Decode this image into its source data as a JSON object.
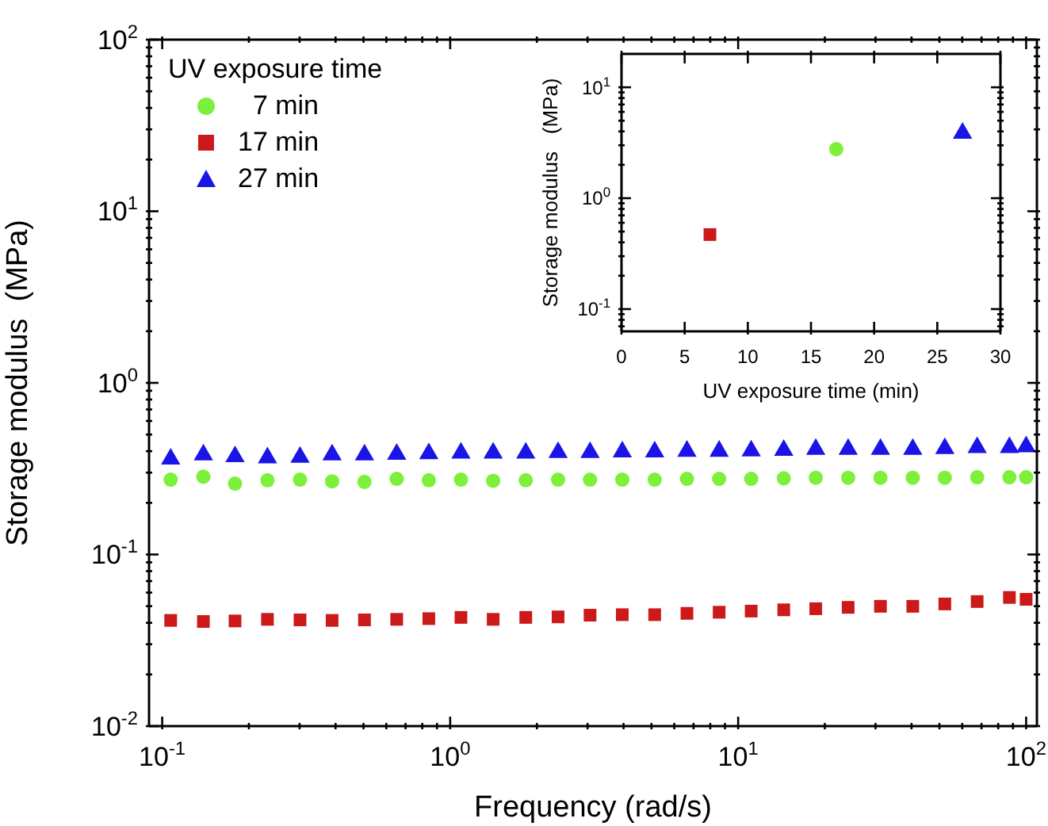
{
  "chart_data": [
    {
      "type": "scatter",
      "xlabel": "Frequency (rad/s)",
      "ylabel": "Storage modulus  (MPa)",
      "legend_title": "UV exposure time",
      "legend": "top left",
      "log": "xy",
      "xlim": [
        0.09,
        109
      ],
      "ylim": [
        0.01,
        100
      ],
      "xticks": [
        {
          "value": 0.1,
          "label": "10$^{-1}$"
        },
        {
          "value": 0.2,
          "label": null
        },
        {
          "value": 0.3,
          "label": null
        },
        {
          "value": 0.4,
          "label": null
        },
        {
          "value": 0.5,
          "label": null
        },
        {
          "value": 0.6,
          "label": null
        },
        {
          "value": 0.7,
          "label": null
        },
        {
          "value": 0.8,
          "label": null
        },
        {
          "value": 0.9,
          "label": null
        },
        {
          "value": 1,
          "label": "10$^{0}$"
        },
        {
          "value": 2,
          "label": null
        },
        {
          "value": 3,
          "label": null
        },
        {
          "value": 4,
          "label": null
        },
        {
          "value": 5,
          "label": null
        },
        {
          "value": 6,
          "label": null
        },
        {
          "value": 7,
          "label": null
        },
        {
          "value": 8,
          "label": null
        },
        {
          "value": 9,
          "label": null
        },
        {
          "value": 10,
          "label": "10$^{1}$"
        },
        {
          "value": 20,
          "label": null
        },
        {
          "value": 30,
          "label": null
        },
        {
          "value": 40,
          "label": null
        },
        {
          "value": 50,
          "label": null
        },
        {
          "value": 60,
          "label": null
        },
        {
          "value": 70,
          "label": null
        },
        {
          "value": 80,
          "label": null
        },
        {
          "value": 90,
          "label": null
        },
        {
          "value": 100,
          "label": "10$^{2}$"
        }
      ],
      "yticks": [
        {
          "value": 0.01,
          "label": "10$^{-2}$"
        },
        {
          "value": 0.02,
          "label": null
        },
        {
          "value": 0.03,
          "label": null
        },
        {
          "value": 0.04,
          "label": null
        },
        {
          "value": 0.05,
          "label": null
        },
        {
          "value": 0.06,
          "label": null
        },
        {
          "value": 0.07,
          "label": null
        },
        {
          "value": 0.08,
          "label": null
        },
        {
          "value": 0.09,
          "label": null
        },
        {
          "value": 0.1,
          "label": "10$^{-1}$"
        },
        {
          "value": 0.2,
          "label": null
        },
        {
          "value": 0.3,
          "label": null
        },
        {
          "value": 0.4,
          "label": null
        },
        {
          "value": 0.5,
          "label": null
        },
        {
          "value": 0.6,
          "label": null
        },
        {
          "value": 0.7,
          "label": null
        },
        {
          "value": 0.8,
          "label": null
        },
        {
          "value": 0.9,
          "label": null
        },
        {
          "value": 1,
          "label": "10$^{0}$"
        },
        {
          "value": 2,
          "label": null
        },
        {
          "value": 3,
          "label": null
        },
        {
          "value": 4,
          "label": null
        },
        {
          "value": 5,
          "label": null
        },
        {
          "value": 6,
          "label": null
        },
        {
          "value": 7,
          "label": null
        },
        {
          "value": 8,
          "label": null
        },
        {
          "value": 9,
          "label": null
        },
        {
          "value": 10,
          "label": "10$^{1}$"
        },
        {
          "value": 20,
          "label": null
        },
        {
          "value": 30,
          "label": null
        },
        {
          "value": 40,
          "label": null
        },
        {
          "value": 50,
          "label": null
        },
        {
          "value": 60,
          "label": null
        },
        {
          "value": 70,
          "label": null
        },
        {
          "value": 80,
          "label": null
        },
        {
          "value": 90,
          "label": null
        },
        {
          "value": 100,
          "label": "10$^{2}$"
        }
      ],
      "x": [
        0.107,
        0.139,
        0.179,
        0.232,
        0.301,
        0.389,
        0.504,
        0.652,
        0.843,
        1.09,
        1.41,
        1.83,
        2.37,
        3.06,
        3.96,
        5.13,
        6.64,
        8.59,
        11.1,
        14.4,
        18.6,
        24.1,
        31.2,
        40.4,
        52.2,
        67.6,
        87.5,
        100
      ],
      "series": [
        {
          "name": "  7 min",
          "color": "#7cf03a",
          "marker": "circle",
          "values": [
            0.273,
            0.284,
            0.259,
            0.271,
            0.273,
            0.267,
            0.265,
            0.276,
            0.271,
            0.273,
            0.269,
            0.271,
            0.273,
            0.273,
            0.273,
            0.273,
            0.276,
            0.276,
            0.276,
            0.278,
            0.28,
            0.28,
            0.28,
            0.28,
            0.28,
            0.282,
            0.282,
            0.282
          ]
        },
        {
          "name": "17 min",
          "color": "#cc1a1a",
          "marker": "square",
          "values": [
            0.0413,
            0.0407,
            0.041,
            0.0419,
            0.0416,
            0.0413,
            0.0416,
            0.0419,
            0.0423,
            0.043,
            0.0419,
            0.043,
            0.0433,
            0.0443,
            0.0446,
            0.0446,
            0.0454,
            0.0461,
            0.0468,
            0.0476,
            0.0483,
            0.0492,
            0.0499,
            0.0499,
            0.0515,
            0.0532,
            0.0562,
            0.0548
          ]
        },
        {
          "name": "27 min",
          "color": "#1a14e6",
          "marker": "triangle",
          "values": [
            0.36,
            0.381,
            0.372,
            0.366,
            0.369,
            0.381,
            0.381,
            0.384,
            0.387,
            0.39,
            0.39,
            0.39,
            0.393,
            0.393,
            0.396,
            0.396,
            0.4,
            0.4,
            0.402,
            0.405,
            0.41,
            0.41,
            0.41,
            0.41,
            0.415,
            0.42,
            0.42,
            0.425
          ]
        }
      ]
    },
    {
      "type": "scatter",
      "xlabel": "UV exposure time   (min)",
      "ylabel": "Storage modulus   (MPa)",
      "log": "y",
      "xlim": [
        0,
        30
      ],
      "ylim": [
        0.063,
        20
      ],
      "xticks": [
        0,
        5,
        10,
        15,
        20,
        25,
        30
      ],
      "yticks": [
        {
          "value": 0.07,
          "label": null
        },
        {
          "value": 0.08,
          "label": null
        },
        {
          "value": 0.09,
          "label": null
        },
        {
          "value": 0.1,
          "label": "10$^{-1}$"
        },
        {
          "value": 0.2,
          "label": null
        },
        {
          "value": 0.3,
          "label": null
        },
        {
          "value": 0.4,
          "label": null
        },
        {
          "value": 0.5,
          "label": null
        },
        {
          "value": 0.6,
          "label": null
        },
        {
          "value": 0.7,
          "label": null
        },
        {
          "value": 0.8,
          "label": null
        },
        {
          "value": 0.9,
          "label": null
        },
        {
          "value": 1,
          "label": "10$^{0}$"
        },
        {
          "value": 2,
          "label": null
        },
        {
          "value": 3,
          "label": null
        },
        {
          "value": 4,
          "label": null
        },
        {
          "value": 5,
          "label": null
        },
        {
          "value": 6,
          "label": null
        },
        {
          "value": 7,
          "label": null
        },
        {
          "value": 8,
          "label": null
        },
        {
          "value": 9,
          "label": null
        },
        {
          "value": 10,
          "label": "10$^{1}$"
        }
      ],
      "series": [
        {
          "color": "#cc1a1a",
          "marker": "square",
          "x": [
            7
          ],
          "values": [
            0.47
          ]
        },
        {
          "color": "#7cf03a",
          "marker": "circle",
          "x": [
            17
          ],
          "values": [
            2.77
          ]
        },
        {
          "color": "#1a14e6",
          "marker": "triangle",
          "x": [
            27
          ],
          "values": [
            3.86
          ]
        }
      ]
    }
  ]
}
